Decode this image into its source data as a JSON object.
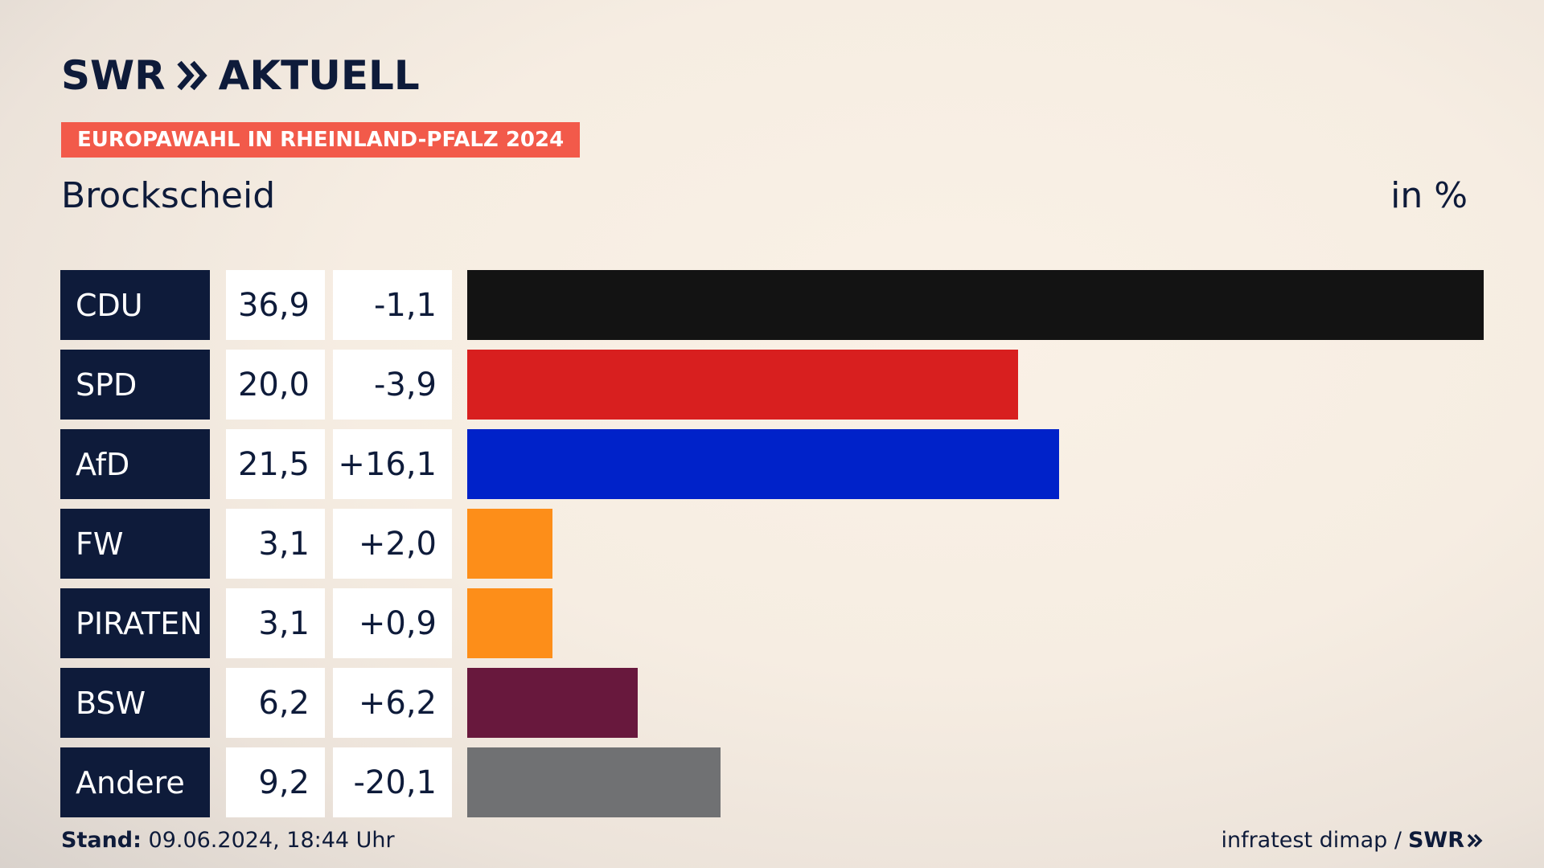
{
  "header": {
    "logo_text_left": "SWR",
    "logo_text_right": "AKTUELL",
    "badge": "EUROPAWAHL IN RHEINLAND-PFALZ 2024",
    "place": "Brockscheid",
    "unit": "in %"
  },
  "footer": {
    "stand_label": "Stand:",
    "stand_value": "09.06.2024, 18:44 Uhr",
    "source": "infratest dimap /",
    "source_logo": "SWR"
  },
  "colors": {
    "navy": "#0e1b3a",
    "badge": "#f25a4a"
  },
  "chart_data": {
    "type": "bar",
    "orientation": "horizontal",
    "categories": [
      "CDU",
      "SPD",
      "AfD",
      "FW",
      "PIRATEN",
      "BSW",
      "Andere"
    ],
    "values": [
      36.9,
      20.0,
      21.5,
      3.1,
      3.1,
      6.2,
      9.2
    ],
    "value_labels": [
      "36,9",
      "20,0",
      "21,5",
      "3,1",
      "3,1",
      "6,2",
      "9,2"
    ],
    "diff_labels": [
      "-1,1",
      "-3,9",
      "+16,1",
      "+2,0",
      "+0,9",
      "+6,2",
      "-20,1"
    ],
    "diffs": [
      -1.1,
      -3.9,
      16.1,
      2.0,
      0.9,
      6.2,
      -20.1
    ],
    "bar_colors": [
      "#131313",
      "#d81f1f",
      "#0022c9",
      "#fd8e19",
      "#fd8e19",
      "#68183d",
      "#707173"
    ],
    "xlim": [
      0,
      36.9
    ],
    "ylabel": "",
    "xlabel": ""
  }
}
